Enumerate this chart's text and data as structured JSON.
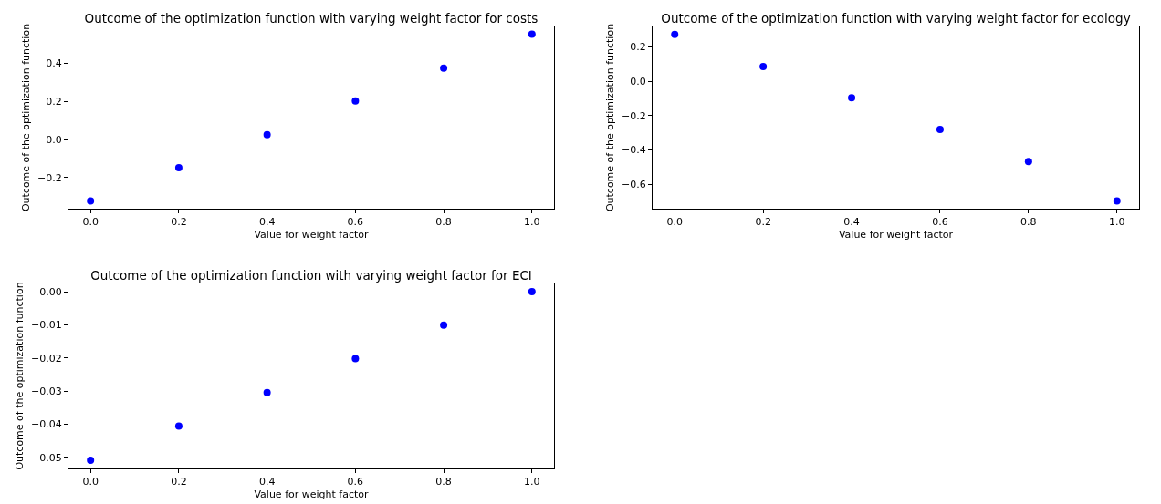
{
  "chart_data": [
    {
      "type": "scatter",
      "title": "Outcome of the optimization function with varying weight factor for costs",
      "xlabel": "Value for weight factor",
      "ylabel": "Outcome of the optimization function",
      "x": [
        0,
        0.2,
        0.4,
        0.6,
        0.8,
        1.0
      ],
      "series": [
        {
          "color": "#0000ff",
          "values": [
            -0.323,
            -0.149,
            0.025,
            0.202,
            0.375,
            0.553
          ]
        }
      ],
      "xlim": [
        -0.05,
        1.05
      ],
      "xticks": [
        {
          "value": 0,
          "label": "0.0"
        },
        {
          "value": 0.2,
          "label": "0.2"
        },
        {
          "value": 0.4,
          "label": "0.4"
        },
        {
          "value": 0.6,
          "label": "0.6"
        },
        {
          "value": 0.8,
          "label": "0.8"
        },
        {
          "value": 1,
          "label": "1.0"
        }
      ],
      "ylim": [
        -0.364,
        0.594
      ],
      "yticks": [
        {
          "value": -0.2,
          "label": "−0.2"
        },
        {
          "value": 0,
          "label": "0.0"
        },
        {
          "value": 0.2,
          "label": "0.2"
        },
        {
          "value": 0.4,
          "label": "0.4"
        }
      ],
      "marker": "circle",
      "grid": false
    },
    {
      "type": "scatter",
      "title": "Outcome of the optimization function with varying weight factor for ecology",
      "xlabel": "Value for weight factor",
      "ylabel": "Outcome of the optimization function",
      "x": [
        0,
        0.2,
        0.4,
        0.6,
        0.8,
        1.0
      ],
      "series": [
        {
          "color": "#0000ff",
          "values": [
            0.274,
            0.086,
            -0.096,
            -0.281,
            -0.468,
            -0.698
          ]
        }
      ],
      "xlim": [
        -0.05,
        1.05
      ],
      "xticks": [
        {
          "value": 0,
          "label": "0.0"
        },
        {
          "value": 0.2,
          "label": "0.2"
        },
        {
          "value": 0.4,
          "label": "0.4"
        },
        {
          "value": 0.6,
          "label": "0.6"
        },
        {
          "value": 0.8,
          "label": "0.8"
        },
        {
          "value": 1,
          "label": "1.0"
        }
      ],
      "ylim": [
        -0.743,
        0.32
      ],
      "yticks": [
        {
          "value": -0.6,
          "label": "−0.6"
        },
        {
          "value": -0.4,
          "label": "−0.4"
        },
        {
          "value": -0.2,
          "label": "−0.2"
        },
        {
          "value": 0,
          "label": "0.0"
        },
        {
          "value": 0.2,
          "label": "0.2"
        }
      ],
      "marker": "circle",
      "grid": false
    },
    {
      "type": "scatter",
      "title": "Outcome of the optimization function with varying weight factor for ECI",
      "xlabel": "Value for weight factor",
      "ylabel": "Outcome of the optimization function",
      "x": [
        0,
        0.2,
        0.4,
        0.6,
        0.8,
        1.0
      ],
      "series": [
        {
          "color": "#0000ff",
          "values": [
            -0.0509,
            -0.0406,
            -0.0305,
            -0.0202,
            -0.0101,
            0
          ]
        }
      ],
      "xlim": [
        -0.05,
        1.05
      ],
      "xticks": [
        {
          "value": 0,
          "label": "0.0"
        },
        {
          "value": 0.2,
          "label": "0.2"
        },
        {
          "value": 0.4,
          "label": "0.4"
        },
        {
          "value": 0.6,
          "label": "0.6"
        },
        {
          "value": 0.8,
          "label": "0.8"
        },
        {
          "value": 1,
          "label": "1.0"
        }
      ],
      "ylim": [
        -0.0534,
        0.0025
      ],
      "yticks": [
        {
          "value": -0.05,
          "label": "−0.05"
        },
        {
          "value": -0.04,
          "label": "−0.04"
        },
        {
          "value": -0.03,
          "label": "−0.03"
        },
        {
          "value": -0.02,
          "label": "−0.02"
        },
        {
          "value": -0.01,
          "label": "−0.01"
        },
        {
          "value": 0,
          "label": "0.00"
        }
      ],
      "marker": "circle",
      "grid": false
    }
  ]
}
